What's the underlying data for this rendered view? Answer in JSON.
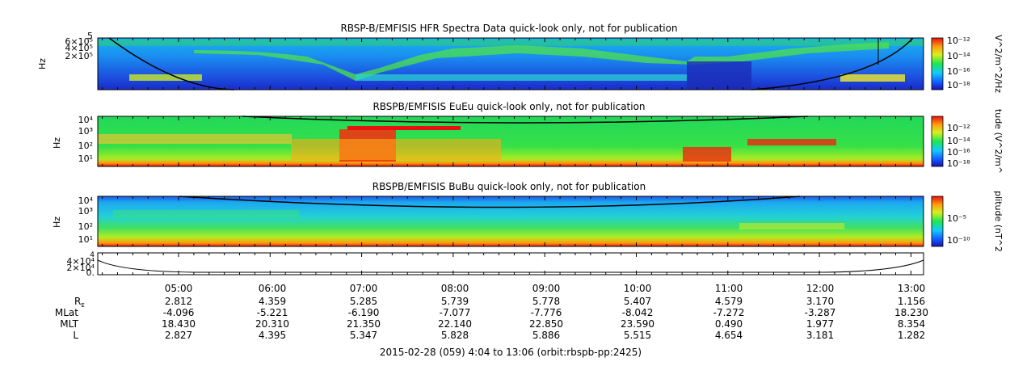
{
  "chart_data": [
    {
      "type": "heatmap",
      "title": "RBSP-B/EMFISIS  HFR Spectra Data quick-look only, not for publication",
      "ylabel": "Hz",
      "ytick_labels": [
        "6×10⁵",
        "4×10⁵",
        "2×10⁵"
      ],
      "ytop_label": "5",
      "colorbar_label": "V^2/m^2/Hz",
      "colorbar_ticks": [
        "10⁻¹²",
        "10⁻¹⁴",
        "10⁻¹⁶",
        "10⁻¹⁸"
      ]
    },
    {
      "type": "heatmap",
      "title": "RBSPB/EMFISIS  EuEu quick-look only, not for publication",
      "ylabel": "Hz",
      "ytick_labels": [
        "10⁴",
        "10³",
        "10²",
        "10¹"
      ],
      "colorbar_label": "tude (V^2/m^",
      "colorbar_ticks": [
        "10⁻¹²",
        "10⁻¹⁴",
        "10⁻¹⁶",
        "10⁻¹⁸"
      ]
    },
    {
      "type": "heatmap",
      "title": "RBSPB/EMFISIS  BuBu quick-look only, not for publication",
      "ylabel": "Hz",
      "ytick_labels": [
        "10⁴",
        "10³",
        "10²",
        "10¹"
      ],
      "colorbar_label": "plitude (nT^2",
      "colorbar_ticks": [
        "10⁻⁵",
        "10⁻¹⁰"
      ]
    },
    {
      "type": "line",
      "ytick_labels": [
        "4×10⁴",
        "2×10⁴",
        "0."
      ],
      "ytop_label": "4"
    }
  ],
  "time_axis": {
    "labels": [
      "05:00",
      "06:00",
      "07:00",
      "08:00",
      "09:00",
      "10:00",
      "11:00",
      "12:00",
      "13:00"
    ]
  },
  "ephemeris": {
    "rows": [
      {
        "label": "R",
        "sub": "E",
        "values": [
          "2.812",
          "4.359",
          "5.285",
          "5.739",
          "5.778",
          "5.407",
          "4.579",
          "3.170",
          "1.156"
        ]
      },
      {
        "label": "MLat",
        "sub": "",
        "values": [
          "-4.096",
          "-5.221",
          "-6.190",
          "-7.077",
          "-7.776",
          "-8.042",
          "-7.272",
          "-3.287",
          "18.230"
        ]
      },
      {
        "label": "MLT",
        "sub": "",
        "values": [
          "18.430",
          "20.310",
          "21.350",
          "22.140",
          "22.850",
          "23.590",
          "0.490",
          "1.977",
          "8.354"
        ]
      },
      {
        "label": "L",
        "sub": "",
        "values": [
          "2.827",
          "4.395",
          "5.347",
          "5.828",
          "5.886",
          "5.515",
          "4.654",
          "3.181",
          "1.282"
        ]
      }
    ]
  },
  "footer": "2015-02-28 (059) 4:04 to 13:06 (orbit:rbspb-pp:2425)"
}
